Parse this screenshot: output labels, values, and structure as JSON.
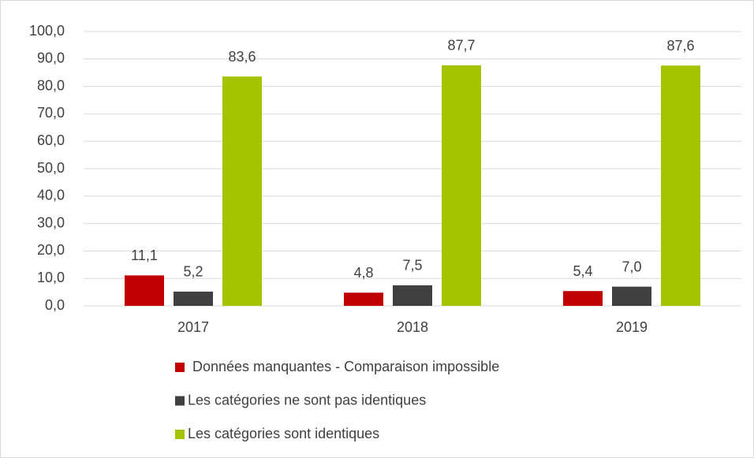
{
  "chart_data": {
    "type": "bar",
    "categories": [
      "2017",
      "2018",
      "2019"
    ],
    "series": [
      {
        "name": "Données manquantes - Comparaison impossible",
        "color": "#c00000",
        "values": [
          11.1,
          4.8,
          5.4
        ],
        "value_labels": [
          "11,1",
          "4,8",
          "5,4"
        ]
      },
      {
        "name": "Les catégories ne sont pas identiques",
        "color": "#404040",
        "values": [
          5.2,
          7.5,
          7.0
        ],
        "value_labels": [
          "5,2",
          "7,5",
          "7,0"
        ]
      },
      {
        "name": "Les catégories sont identiques",
        "color": "#a5c400",
        "values": [
          83.6,
          87.7,
          87.6
        ],
        "value_labels": [
          "83,6",
          "87,7",
          "87,6"
        ]
      }
    ],
    "ylim": [
      0,
      100
    ],
    "yticks": [
      {
        "value": 0,
        "label": "0,0"
      },
      {
        "value": 10,
        "label": "10,0"
      },
      {
        "value": 20,
        "label": "20,0"
      },
      {
        "value": 30,
        "label": "30,0"
      },
      {
        "value": 40,
        "label": "40,0"
      },
      {
        "value": 50,
        "label": "50,0"
      },
      {
        "value": 60,
        "label": "60,0"
      },
      {
        "value": 70,
        "label": "70,0"
      },
      {
        "value": 80,
        "label": "80,0"
      },
      {
        "value": 90,
        "label": "90,0"
      },
      {
        "value": 100,
        "label": "100,0"
      }
    ],
    "grid": true,
    "legend": "bottom"
  }
}
